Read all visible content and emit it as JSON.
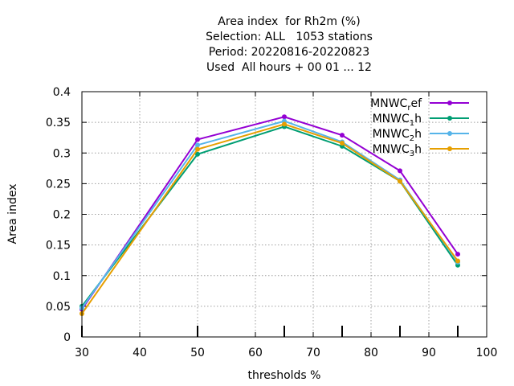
{
  "chart_data": {
    "type": "line",
    "title_lines": [
      "Area index  for Rh2m (%)",
      "Selection: ALL   1053 stations",
      "Period: 20220816-20220823",
      "Used  All hours + 00 01 ... 12"
    ],
    "xlabel": "thresholds %",
    "ylabel": "Area index",
    "xlim": [
      30,
      100
    ],
    "ylim": [
      0,
      0.4
    ],
    "xticks": [
      30,
      40,
      50,
      60,
      70,
      80,
      90,
      100
    ],
    "yticks": [
      0,
      0.05,
      0.1,
      0.15,
      0.2,
      0.25,
      0.3,
      0.35,
      0.4
    ],
    "grid": true,
    "legend_position": "top-right",
    "x": [
      30,
      50,
      65,
      75,
      85,
      95
    ],
    "series": [
      {
        "name": "MNWC_ref",
        "label_main": "MNWC",
        "label_sub": "r",
        "label_tail": "ef",
        "color": "#9400d3",
        "values": [
          0.045,
          0.322,
          0.359,
          0.329,
          0.271,
          0.135
        ]
      },
      {
        "name": "MNWC_1h",
        "label_main": "MNWC",
        "label_sub": "1",
        "label_tail": "h",
        "color": "#009e73",
        "values": [
          0.05,
          0.298,
          0.343,
          0.311,
          0.254,
          0.117
        ]
      },
      {
        "name": "MNWC_2h",
        "label_main": "MNWC",
        "label_sub": "2",
        "label_tail": "h",
        "color": "#56b4e9",
        "values": [
          0.047,
          0.313,
          0.352,
          0.318,
          0.256,
          0.122
        ]
      },
      {
        "name": "MNWC_3h",
        "label_main": "MNWC",
        "label_sub": "3",
        "label_tail": "h",
        "color": "#e69f00",
        "values": [
          0.038,
          0.306,
          0.347,
          0.316,
          0.254,
          0.124
        ]
      }
    ]
  }
}
